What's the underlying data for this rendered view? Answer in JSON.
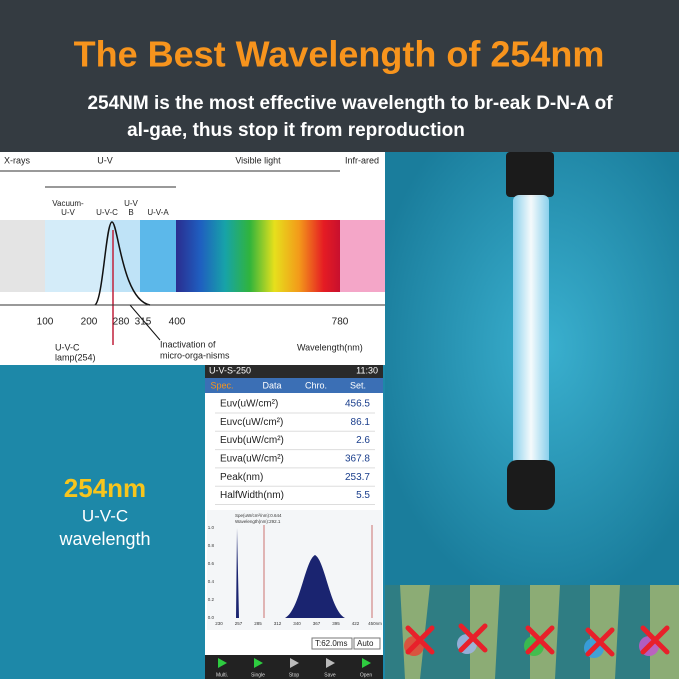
{
  "header": {
    "title": "The Best Wavelength of 254nm",
    "subtitle": [
      "254NM is the most effective wavelength to br-eak D-N-A of",
      "al-gae, thus stop it from reproduction"
    ]
  },
  "spectrum": {
    "regions": [
      "X-rays",
      "U-V",
      "Visible light",
      "Infr-ared"
    ],
    "bands": {
      "vacuum_uv": [
        "Vacuum-",
        "U-V"
      ],
      "uvc": "U-V-C",
      "uvb": [
        "U-V",
        "B"
      ],
      "uva": "U-V-A"
    },
    "ticks": [
      "100",
      "200",
      "280",
      "315",
      "400",
      "780"
    ],
    "lamp": [
      "U-V-C",
      "lamp(254)"
    ],
    "inactivation": [
      "Inactivation of",
      "micro-orga-nisms"
    ],
    "axis_label": "Wavelength(nm)"
  },
  "callout": {
    "wavelength": "254nm",
    "band": "U-V-C",
    "word": "wavelength"
  },
  "device": {
    "model": "U-V-S-250",
    "time": "11:30",
    "tabs": [
      "Spec.",
      "Data",
      "Chro.",
      "Set."
    ],
    "rows": [
      [
        "Euv(uW/cm²)",
        "456.5"
      ],
      [
        "Euvc(uW/cm²)",
        "86.1"
      ],
      [
        "Euvb(uW/cm²)",
        "2.6"
      ],
      [
        "Euva(uW/cm²)",
        "367.8"
      ],
      [
        "Peak(nm)",
        "253.7"
      ],
      [
        "HalfWidth(nm)",
        "5.5"
      ]
    ],
    "chart": {
      "info": [
        "Spe(uW/cm²/nm):0.644",
        "Wavelength(nm):292.1"
      ],
      "yticks": [
        "1.0",
        "0.8",
        "0.6",
        "0.4",
        "0.2",
        "0.0"
      ],
      "xticks": [
        "230",
        "257",
        "285",
        "312",
        "340",
        "367",
        "395",
        "422",
        "450nm"
      ]
    },
    "status": {
      "integration": "T:62.0ms",
      "mode": "Auto"
    },
    "buttons": [
      "Multi.",
      "Single",
      "Stop",
      "Save",
      "Open"
    ]
  }
}
